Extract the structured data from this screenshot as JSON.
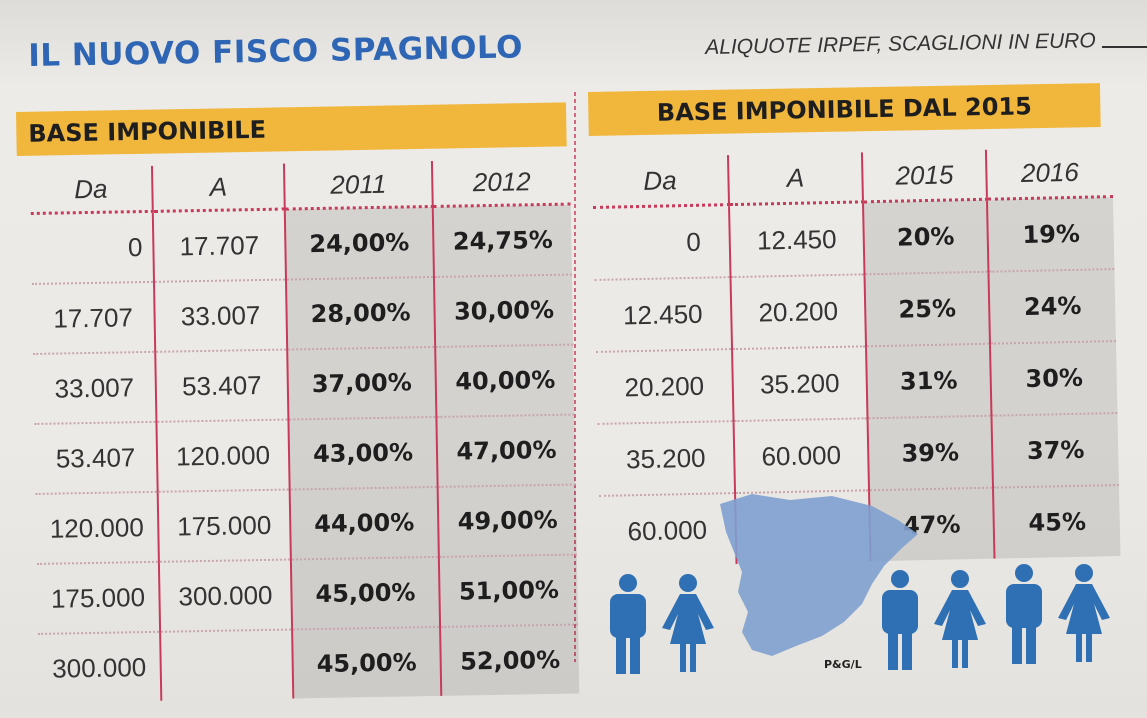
{
  "title": "IL NUOVO FISCO SPAGNOLO",
  "subtitle": "ALIQUOTE IRPEF, SCAGLIONI IN EURO",
  "left_section": {
    "banner": "BASE IMPONIBILE",
    "headers": [
      "Da",
      "A",
      "2011",
      "2012"
    ],
    "rows": [
      [
        "0",
        "17.707",
        "24,00%",
        "24,75%"
      ],
      [
        "17.707",
        "33.007",
        "28,00%",
        "30,00%"
      ],
      [
        "33.007",
        "53.407",
        "37,00%",
        "40,00%"
      ],
      [
        "53.407",
        "120.000",
        "43,00%",
        "47,00%"
      ],
      [
        "120.000",
        "175.000",
        "44,00%",
        "49,00%"
      ],
      [
        "175.000",
        "300.000",
        "45,00%",
        "51,00%"
      ],
      [
        "300.000",
        "",
        "45,00%",
        "52,00%"
      ]
    ]
  },
  "right_section": {
    "banner": "BASE IMPONIBILE DAL 2015",
    "headers": [
      "Da",
      "A",
      "2015",
      "2016"
    ],
    "rows": [
      [
        "0",
        "12.450",
        "20%",
        "19%"
      ],
      [
        "12.450",
        "20.200",
        "25%",
        "24%"
      ],
      [
        "20.200",
        "35.200",
        "31%",
        "30%"
      ],
      [
        "35.200",
        "60.000",
        "39%",
        "37%"
      ],
      [
        "60.000",
        "",
        "47%",
        "45%"
      ]
    ]
  },
  "credit": "P&G/L",
  "colors": {
    "title_blue": "#2e66b5",
    "banner_yellow": "#f1b73c",
    "rule_red": "#c83a5a",
    "figure_blue": "#2f6fb4",
    "map_blue": "#7ea0cf"
  },
  "icons": [
    "spain-map-icon",
    "man-icon",
    "woman-icon"
  ]
}
